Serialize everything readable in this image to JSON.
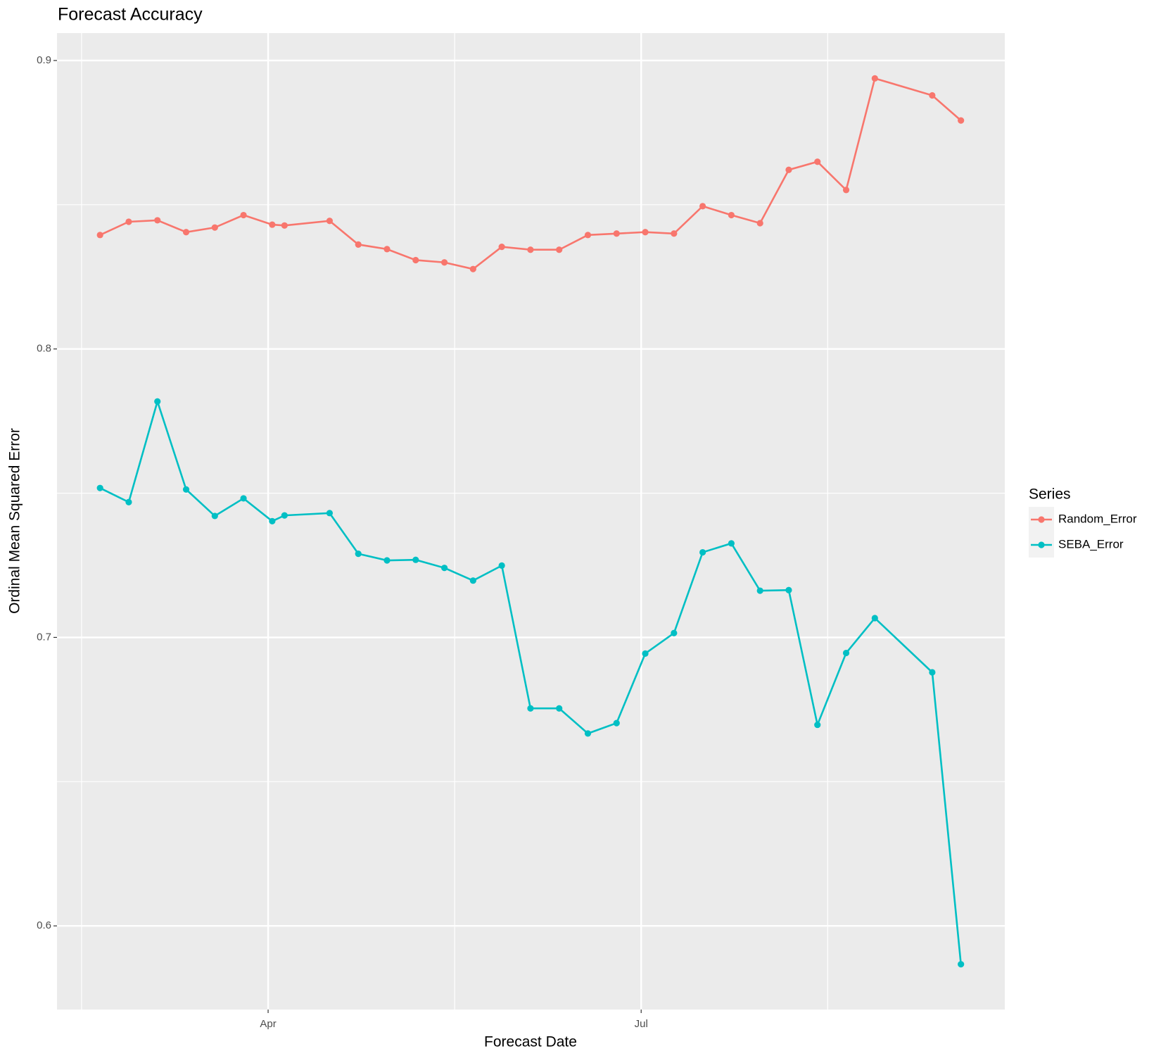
{
  "chart_data": {
    "type": "line",
    "title": "Forecast Accuracy",
    "xlabel": "Forecast Date",
    "ylabel": "Ordinal Mean Squared Error",
    "legend_title": "Series",
    "legend": "right",
    "grid": true,
    "x": [
      50,
      57,
      64,
      71,
      78,
      85,
      92,
      95,
      106,
      113,
      120,
      127,
      134,
      141,
      148,
      155,
      162,
      169,
      176,
      183,
      190,
      197,
      204,
      211,
      218,
      225,
      232,
      239,
      253,
      260
    ],
    "xlim": [
      39.5,
      270.7
    ],
    "xticks": [
      {
        "value": 91,
        "label": "Apr"
      },
      {
        "value": 182,
        "label": "Jul"
      }
    ],
    "ylim": [
      0.571,
      0.9095
    ],
    "yticks": [
      0.6,
      0.7,
      0.8,
      0.9
    ],
    "series": [
      {
        "name": "Random_Error",
        "color": "#F8766D",
        "values": [
          0.8395,
          0.8441,
          0.8446,
          0.8405,
          0.8421,
          0.8464,
          0.8431,
          0.8428,
          0.8444,
          0.8362,
          0.8346,
          0.8308,
          0.83,
          0.8277,
          0.8354,
          0.8344,
          0.8344,
          0.8395,
          0.84,
          0.8405,
          0.84,
          0.8495,
          0.8464,
          0.8436,
          0.8621,
          0.8649,
          0.8551,
          0.8938,
          0.8879,
          0.8792
        ]
      },
      {
        "name": "SEBA_Error",
        "color": "#00BFC4",
        "values": [
          0.7518,
          0.7469,
          0.7818,
          0.7513,
          0.7421,
          0.7482,
          0.7403,
          0.7423,
          0.7431,
          0.729,
          0.7267,
          0.7269,
          0.7241,
          0.7197,
          0.7249,
          0.6754,
          0.6754,
          0.6667,
          0.6703,
          0.6944,
          0.7015,
          0.7295,
          0.7326,
          0.7162,
          0.7164,
          0.6697,
          0.6946,
          0.7067,
          0.6879,
          0.5867
        ]
      }
    ]
  }
}
